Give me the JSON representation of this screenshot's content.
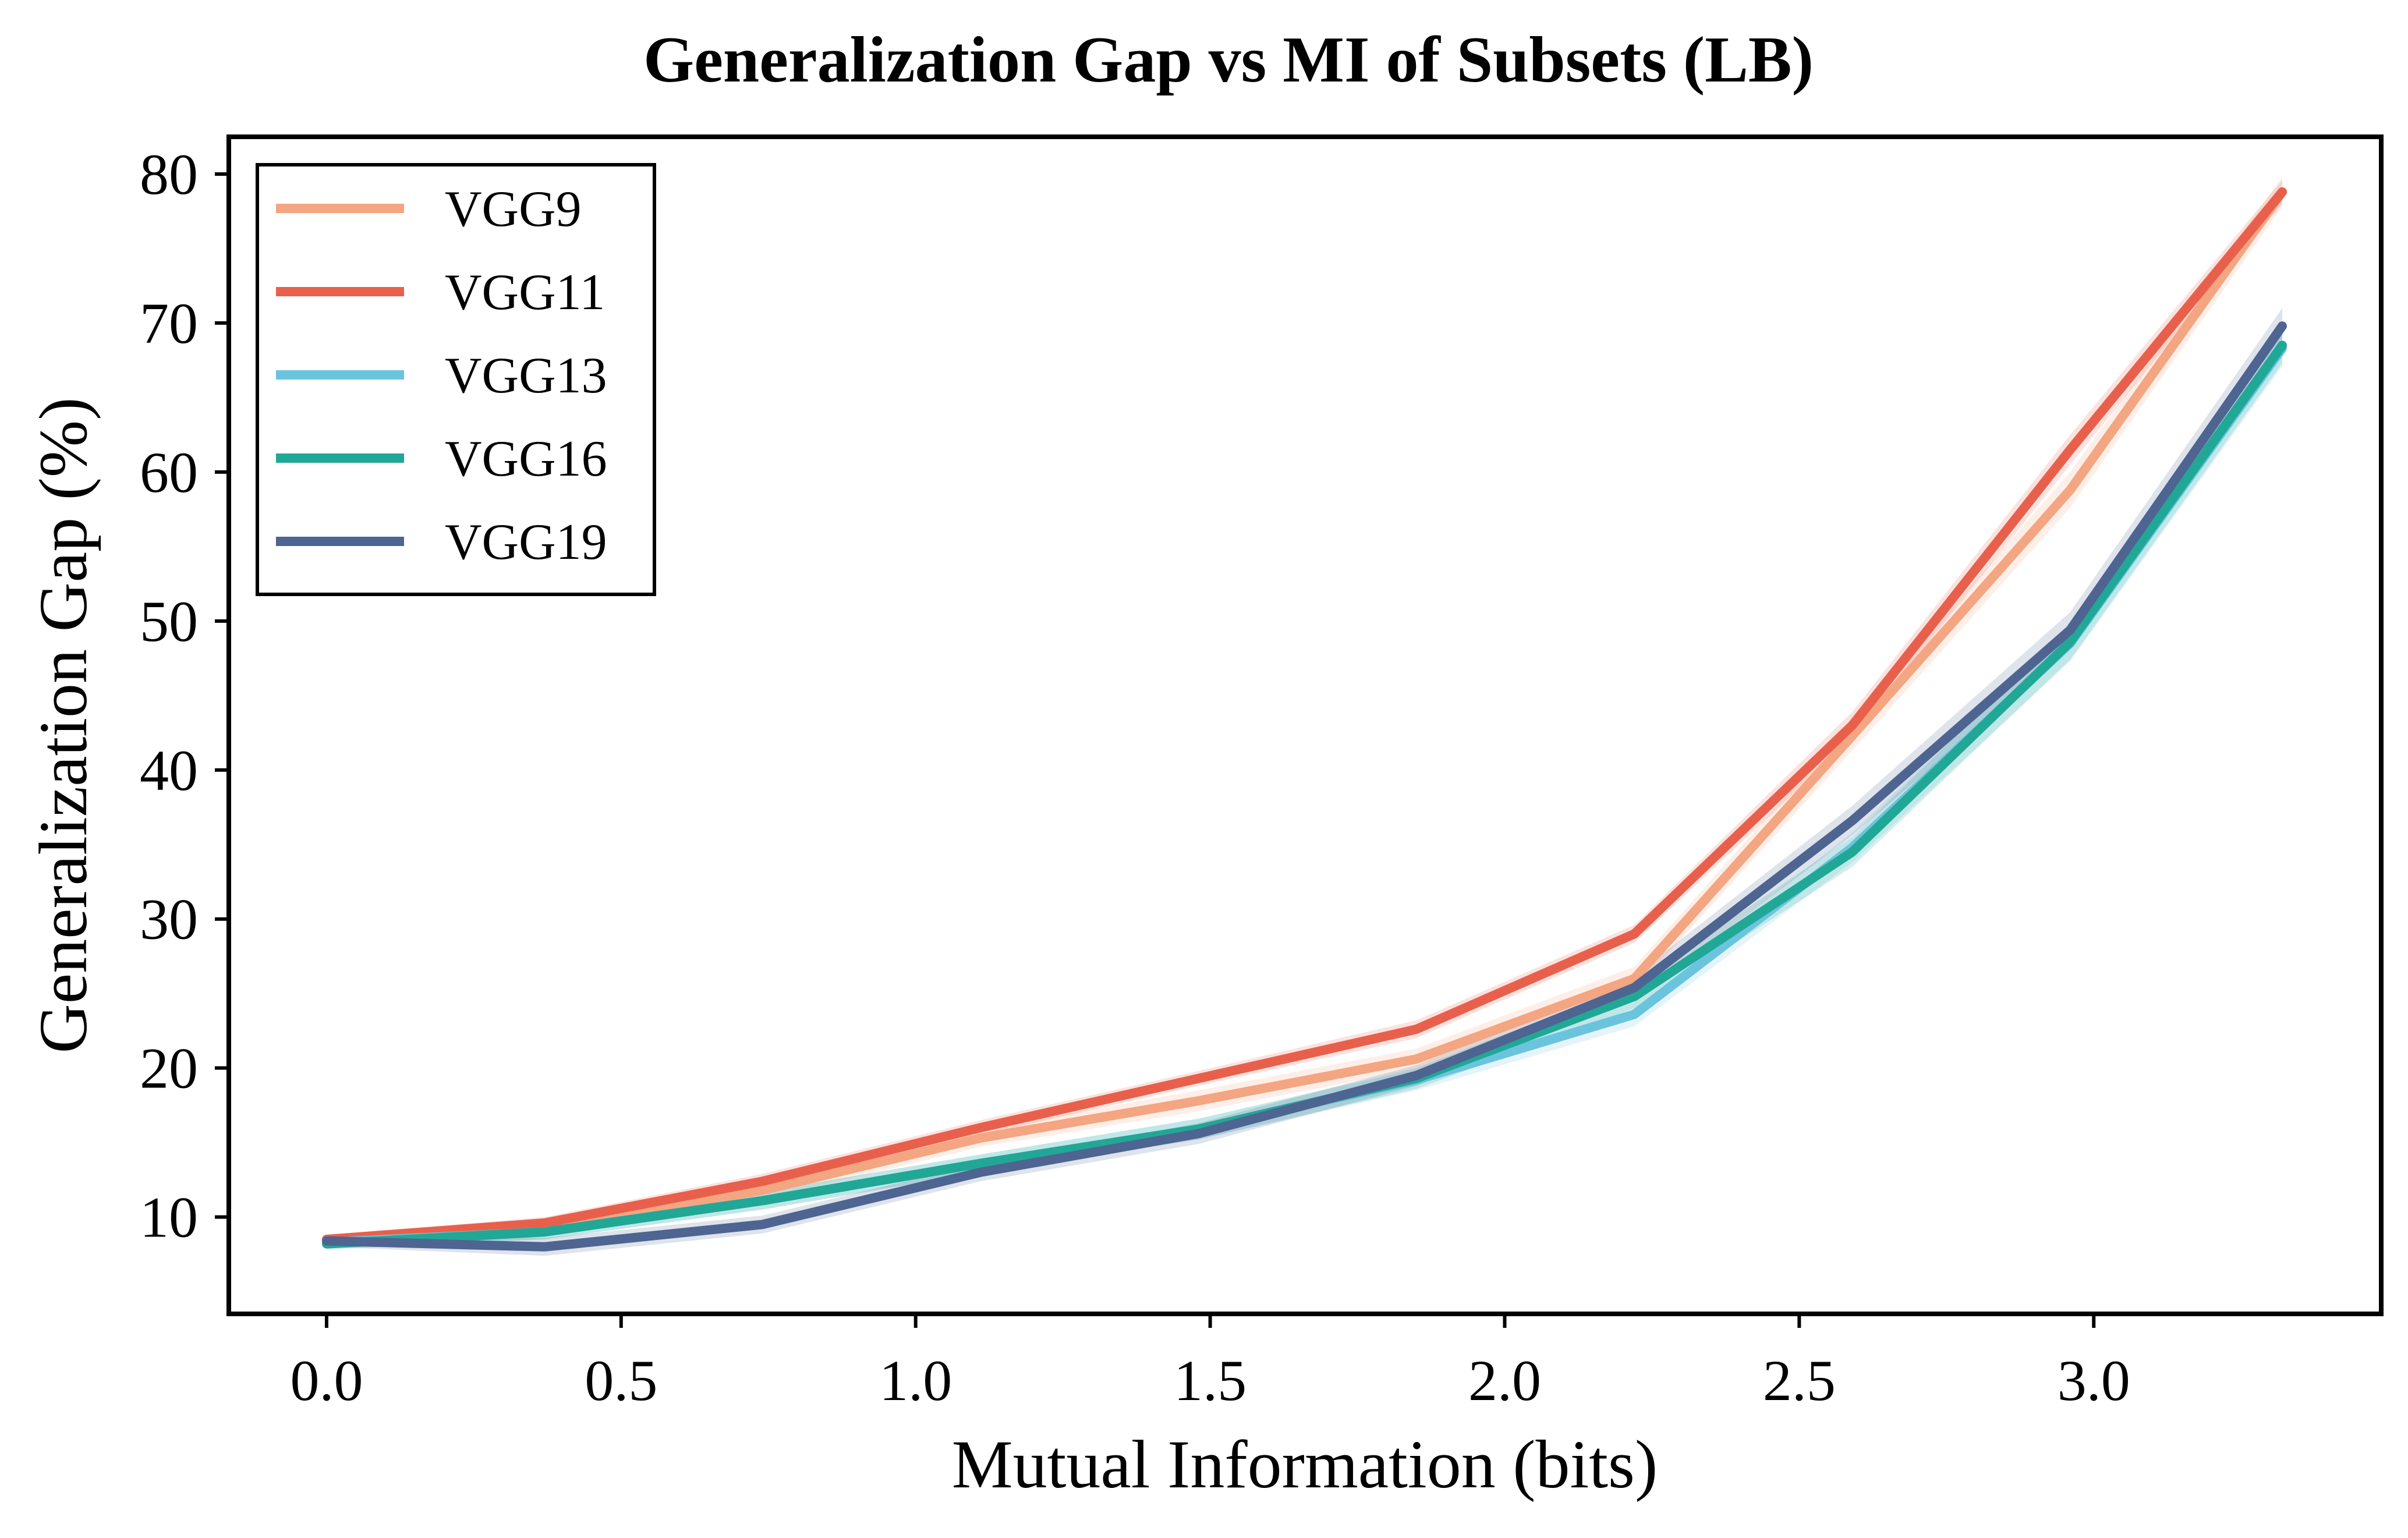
{
  "chart_data": {
    "type": "line",
    "title": "Generalization Gap vs MI of Subsets (LB)",
    "xlabel": "Mutual Information (bits)",
    "ylabel": "Generalization Gap (%)",
    "xlim": [
      -0.166,
      3.488
    ],
    "ylim": [
      3.5,
      82.5
    ],
    "xticks": [
      0.0,
      0.5,
      1.0,
      1.5,
      2.0,
      2.5,
      3.0
    ],
    "xtick_labels": [
      "0.0",
      "0.5",
      "1.0",
      "1.5",
      "2.0",
      "2.5",
      "3.0"
    ],
    "yticks": [
      10,
      20,
      30,
      40,
      50,
      60,
      70,
      80
    ],
    "ytick_labels": [
      "10",
      "20",
      "30",
      "40",
      "50",
      "60",
      "70",
      "80"
    ],
    "grid": false,
    "legend_position": "top-left",
    "x": [
      0.0,
      0.37,
      0.74,
      1.11,
      1.48,
      1.85,
      2.22,
      2.59,
      2.96,
      3.32
    ],
    "series": [
      {
        "name": "VGG9",
        "color": "#F4A582",
        "values": [
          8.4,
          9.3,
          11.8,
          15.3,
          17.8,
          20.6,
          26.0,
          42.3,
          58.8,
          78.8
        ],
        "band_lower": [
          8.0,
          8.8,
          11.2,
          14.7,
          17.1,
          19.9,
          25.2,
          41.3,
          57.6,
          77.8
        ],
        "band_upper": [
          8.8,
          9.8,
          12.4,
          15.9,
          18.5,
          21.3,
          26.8,
          43.3,
          60.0,
          79.8
        ]
      },
      {
        "name": "VGG11",
        "color": "#E8604C",
        "values": [
          8.5,
          9.6,
          12.4,
          16.0,
          19.3,
          22.6,
          29.0,
          43.0,
          61.5,
          78.8
        ],
        "band_lower": [
          8.2,
          9.2,
          11.9,
          15.5,
          18.8,
          22.0,
          28.4,
          42.1,
          60.5,
          78.0
        ],
        "band_upper": [
          8.8,
          10.0,
          12.9,
          16.5,
          19.8,
          23.2,
          29.6,
          43.9,
          62.5,
          79.6
        ]
      },
      {
        "name": "VGG13",
        "color": "#6BC4DD",
        "values": [
          8.3,
          9.0,
          11.1,
          13.6,
          15.9,
          19.2,
          23.6,
          34.8,
          48.5,
          68.3
        ],
        "band_lower": [
          7.9,
          8.5,
          10.5,
          13.0,
          15.2,
          18.5,
          22.8,
          33.8,
          47.3,
          67.1
        ],
        "band_upper": [
          8.7,
          9.5,
          11.7,
          14.2,
          16.6,
          19.9,
          24.4,
          35.8,
          49.7,
          69.5
        ]
      },
      {
        "name": "VGG16",
        "color": "#21A796",
        "values": [
          8.2,
          9.0,
          11.1,
          13.6,
          15.9,
          19.3,
          24.8,
          34.5,
          48.6,
          68.5
        ],
        "band_lower": [
          7.8,
          8.5,
          10.5,
          13.0,
          15.2,
          18.6,
          24.0,
          33.5,
          47.4,
          67.3
        ],
        "band_upper": [
          8.6,
          9.5,
          11.7,
          14.2,
          16.6,
          20.0,
          25.6,
          35.5,
          49.8,
          69.7
        ]
      },
      {
        "name": "VGG19",
        "color": "#4E6491",
        "values": [
          8.4,
          8.0,
          9.5,
          13.0,
          15.6,
          19.5,
          25.4,
          36.6,
          49.4,
          69.8
        ],
        "band_lower": [
          8.0,
          7.4,
          8.9,
          12.4,
          14.9,
          18.8,
          24.6,
          35.6,
          48.2,
          68.6
        ],
        "band_upper": [
          8.8,
          8.6,
          10.1,
          13.6,
          16.3,
          20.2,
          26.2,
          37.6,
          50.6,
          71.0
        ]
      }
    ]
  }
}
